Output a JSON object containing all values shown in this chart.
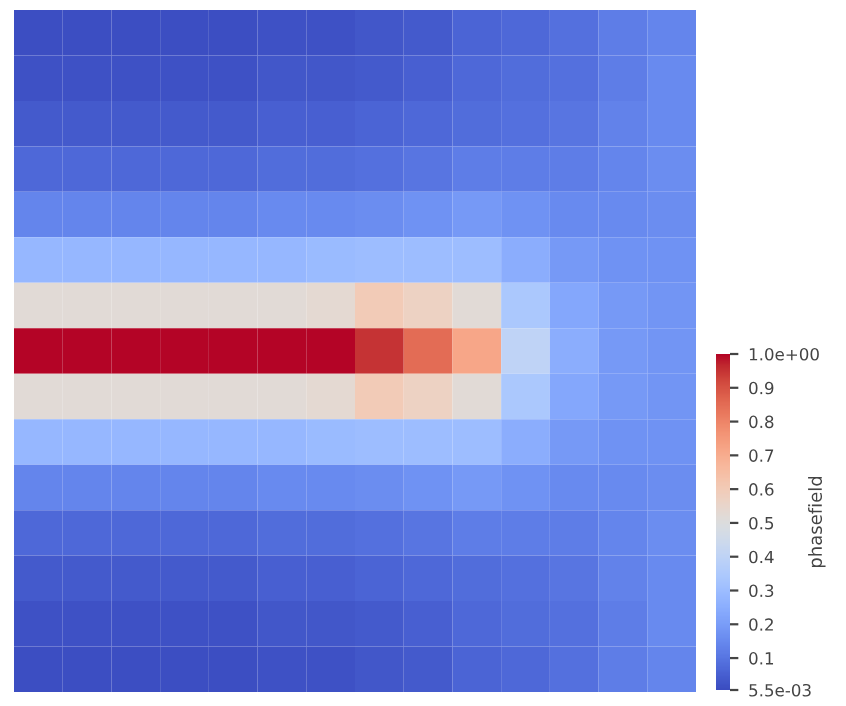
{
  "chart_data": {
    "type": "heatmap",
    "clabel": "phasefield",
    "categories": [
      null,
      null,
      null,
      null,
      null,
      null,
      null,
      null,
      null,
      null,
      null,
      null,
      null,
      null
    ],
    "y_categories": [
      null,
      null,
      null,
      null,
      null,
      null,
      null,
      null,
      null,
      null,
      null,
      null,
      null,
      null,
      null
    ],
    "cells": [
      [
        0.01,
        0.01,
        0.01,
        0.01,
        0.01,
        0.02,
        0.02,
        0.03,
        0.04,
        0.06,
        0.07,
        0.09,
        0.12,
        0.14
      ],
      [
        0.02,
        0.02,
        0.02,
        0.02,
        0.02,
        0.03,
        0.03,
        0.04,
        0.05,
        0.07,
        0.08,
        0.09,
        0.12,
        0.15
      ],
      [
        0.04,
        0.04,
        0.04,
        0.04,
        0.04,
        0.05,
        0.05,
        0.06,
        0.07,
        0.08,
        0.09,
        0.1,
        0.13,
        0.15
      ],
      [
        0.07,
        0.07,
        0.07,
        0.07,
        0.07,
        0.08,
        0.08,
        0.09,
        0.1,
        0.12,
        0.12,
        0.12,
        0.14,
        0.16
      ],
      [
        0.14,
        0.14,
        0.14,
        0.14,
        0.14,
        0.15,
        0.15,
        0.16,
        0.17,
        0.19,
        0.17,
        0.15,
        0.15,
        0.16
      ],
      [
        0.28,
        0.28,
        0.28,
        0.28,
        0.28,
        0.28,
        0.29,
        0.3,
        0.3,
        0.3,
        0.25,
        0.19,
        0.17,
        0.17
      ],
      [
        0.52,
        0.52,
        0.52,
        0.52,
        0.52,
        0.52,
        0.53,
        0.6,
        0.57,
        0.52,
        0.34,
        0.23,
        0.19,
        0.18
      ],
      [
        1.0,
        1.0,
        1.0,
        1.0,
        1.0,
        1.0,
        1.0,
        0.95,
        0.85,
        0.72,
        0.4,
        0.25,
        0.19,
        0.18
      ],
      [
        0.52,
        0.52,
        0.52,
        0.52,
        0.52,
        0.52,
        0.53,
        0.6,
        0.57,
        0.52,
        0.34,
        0.23,
        0.19,
        0.18
      ],
      [
        0.28,
        0.28,
        0.28,
        0.28,
        0.28,
        0.28,
        0.29,
        0.3,
        0.3,
        0.3,
        0.25,
        0.19,
        0.17,
        0.17
      ],
      [
        0.14,
        0.14,
        0.14,
        0.14,
        0.14,
        0.15,
        0.15,
        0.16,
        0.17,
        0.19,
        0.17,
        0.15,
        0.15,
        0.16
      ],
      [
        0.07,
        0.07,
        0.07,
        0.07,
        0.07,
        0.08,
        0.08,
        0.09,
        0.1,
        0.12,
        0.12,
        0.12,
        0.14,
        0.16
      ],
      [
        0.04,
        0.04,
        0.04,
        0.04,
        0.04,
        0.05,
        0.05,
        0.06,
        0.07,
        0.08,
        0.09,
        0.1,
        0.13,
        0.15
      ],
      [
        0.02,
        0.02,
        0.02,
        0.02,
        0.02,
        0.03,
        0.03,
        0.04,
        0.05,
        0.07,
        0.08,
        0.09,
        0.12,
        0.15
      ],
      [
        0.01,
        0.01,
        0.01,
        0.01,
        0.01,
        0.02,
        0.02,
        0.03,
        0.04,
        0.06,
        0.07,
        0.09,
        0.12,
        0.14
      ]
    ],
    "clim": [
      0.0055,
      1.0
    ],
    "cticks": [
      {
        "value": 0.0055,
        "label": "5.5e-03"
      },
      0.1,
      0.2,
      0.3,
      0.4,
      0.5,
      0.6,
      0.7,
      0.8,
      0.9,
      {
        "value": 1.0,
        "label": "1.0e+00"
      }
    ],
    "tick_labels": false
  }
}
